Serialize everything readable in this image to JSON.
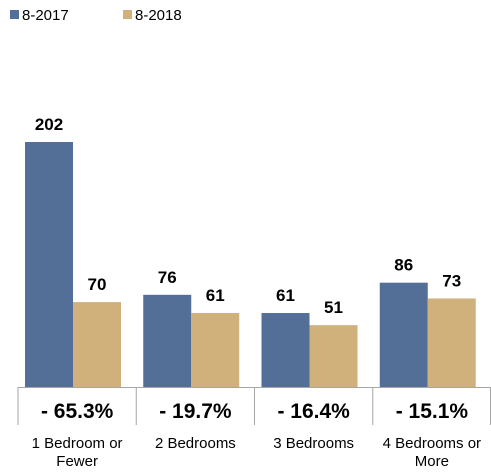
{
  "chart_data": {
    "type": "bar",
    "categories": [
      [
        "1 Bedroom or",
        "Fewer"
      ],
      [
        "2 Bedrooms"
      ],
      [
        "3 Bedrooms"
      ],
      [
        "4 Bedrooms or",
        "More"
      ]
    ],
    "series": [
      {
        "name": "8-2017",
        "color": "#536f98",
        "values": [
          202,
          76,
          61,
          86
        ]
      },
      {
        "name": "8-2018",
        "color": "#d1b17b",
        "values": [
          70,
          61,
          51,
          73
        ]
      }
    ],
    "percent_change": [
      "- 65.3%",
      "- 19.7%",
      "- 16.4%",
      "- 15.1%"
    ],
    "ylim": [
      0,
      202
    ],
    "grid": false,
    "legend_position": "top-left",
    "title": "",
    "xlabel": "",
    "ylabel": ""
  }
}
